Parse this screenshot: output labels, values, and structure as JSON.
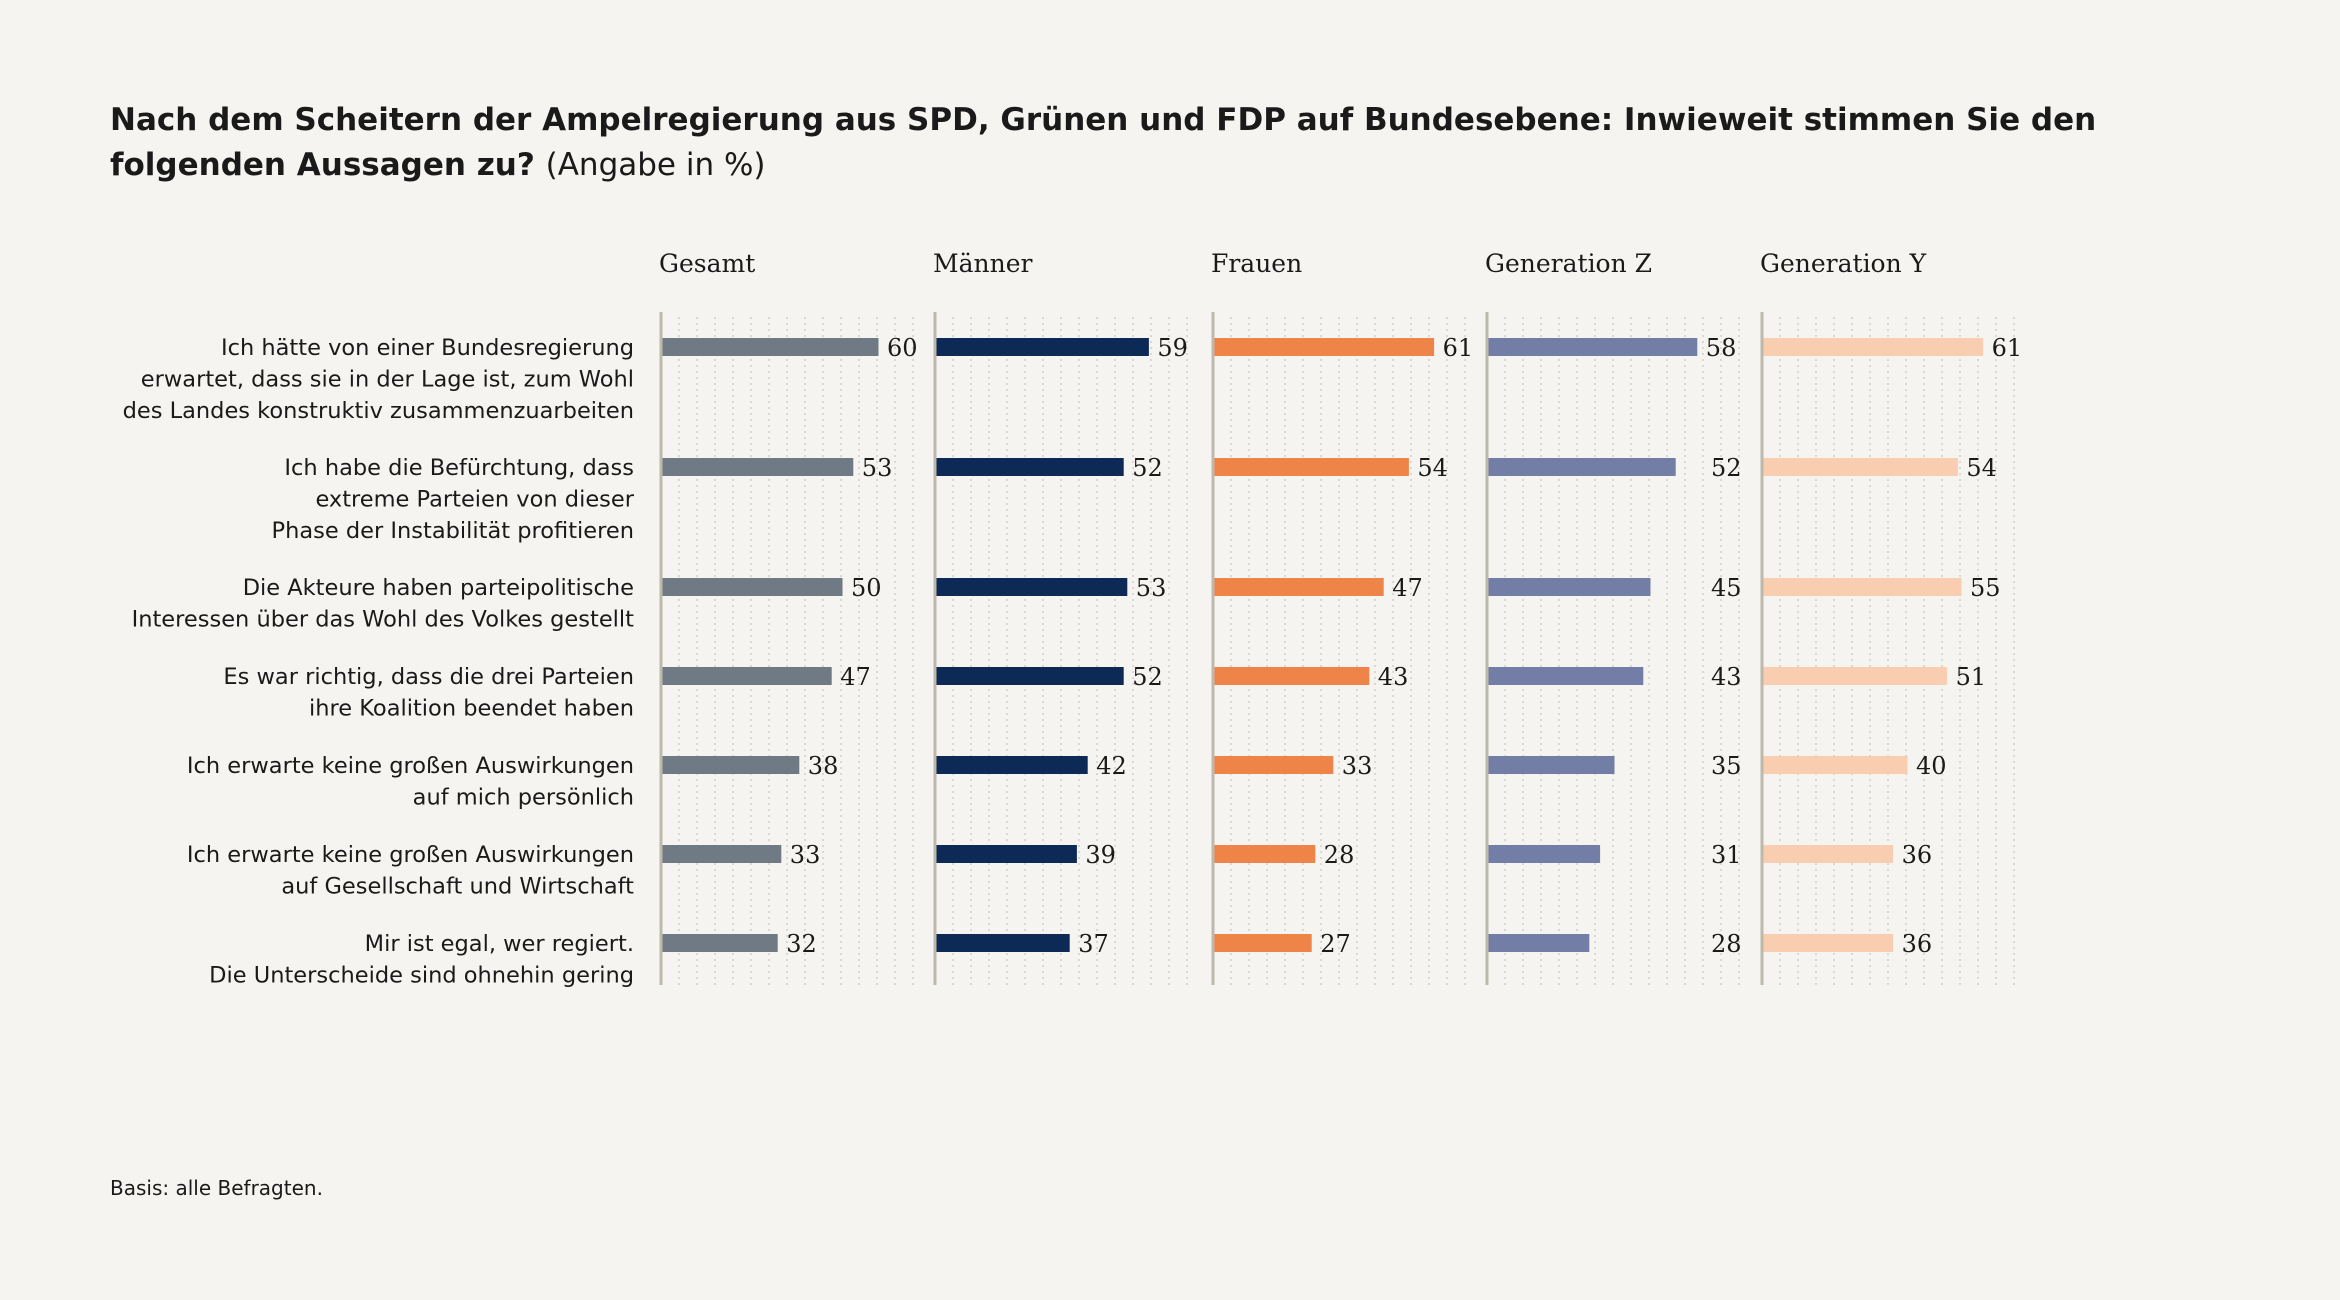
{
  "title": {
    "bold": "Nach dem Scheitern der Ampelregierung aus SPD, Grünen und FDP auf Bundesebene: Inwieweit stimmen Sie den folgenden Aussagen zu?",
    "unit": "(Angabe in %)"
  },
  "footnote": "Basis: alle Befragten.",
  "chart_data": {
    "type": "bar",
    "orientation": "horizontal",
    "panels": "one panel per series",
    "xlim": [
      0,
      70
    ],
    "grid": true,
    "categories": [
      [
        "Ich hätte von einer Bundesregierung",
        "erwartet, dass sie in der Lage ist, zum Wohl",
        "des Landes konstruktiv zusammenzuarbeiten"
      ],
      [
        "Ich habe die Befürchtung, dass",
        "extreme Parteien von dieser",
        "Phase der Instabilität profitieren"
      ],
      [
        "Die Akteure haben parteipolitische",
        "Interessen über das Wohl des Volkes gestellt"
      ],
      [
        "Es war richtig, dass die drei Parteien",
        "ihre Koalition beendet haben"
      ],
      [
        "Ich erwarte keine großen Auswirkungen",
        "auf mich persönlich"
      ],
      [
        "Ich erwarte keine großen Auswirkungen",
        "auf Gesellschaft und Wirtschaft"
      ],
      [
        "Mir ist egal, wer regiert.",
        "Die Unterscheide sind ohnehin gering"
      ]
    ],
    "series": [
      {
        "name": "Gesamt",
        "color": "#6f7a84",
        "values": [
          60,
          53,
          50,
          47,
          38,
          33,
          32
        ]
      },
      {
        "name": "Männer",
        "color": "#0d2a57",
        "values": [
          59,
          52,
          53,
          52,
          42,
          39,
          37
        ]
      },
      {
        "name": "Frauen",
        "color": "#ee8447",
        "values": [
          61,
          54,
          47,
          43,
          33,
          28,
          27
        ]
      },
      {
        "name": "Generation Z",
        "color": "#737ea6",
        "values": [
          58,
          52,
          45,
          43,
          35,
          31,
          28
        ]
      },
      {
        "name": "Generation Y",
        "color": "#f8cdb0",
        "values": [
          61,
          54,
          55,
          51,
          40,
          36,
          36
        ]
      }
    ]
  }
}
